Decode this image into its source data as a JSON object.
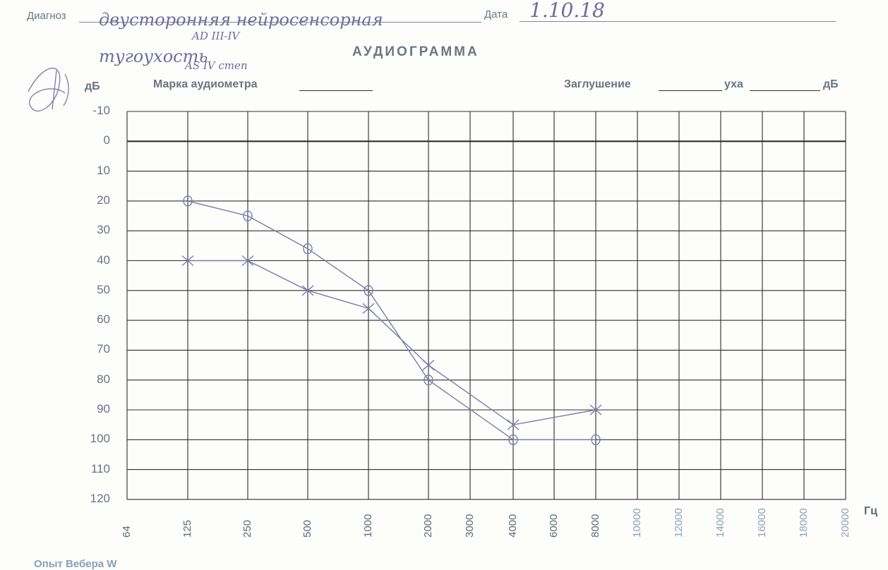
{
  "header": {
    "diagnosis_label": "Диагноз",
    "diagnosis_value": "двусторонняя нейросенсорная тугоухость",
    "date_label": "Дата",
    "date_value": "1.10.18",
    "margin_notes": [
      "AD III-IV",
      "AS IV степ"
    ]
  },
  "form": {
    "title": "АУДИОГРАММА",
    "audiometer_label": "Марка аудиометра",
    "masking_label": "Заглушение",
    "ear_label": "уха",
    "db_unit": "дБ"
  },
  "chart_data": {
    "type": "line",
    "title": "АУДИОГРАММА",
    "ylabel": "дБ",
    "xlabel": "Гц",
    "y_ticks": [
      "-10",
      "0",
      "10",
      "20",
      "30",
      "40",
      "50",
      "60",
      "70",
      "80",
      "90",
      "100",
      "110",
      "120"
    ],
    "ylim": [
      -10,
      120
    ],
    "y_inverted": true,
    "x_ticks": [
      "64",
      "125",
      "250",
      "500",
      "1000",
      "2000",
      "3000",
      "4000",
      "6000",
      "8000",
      "10000",
      "12000",
      "14000",
      "16000",
      "18000",
      "20000"
    ],
    "grid": true,
    "series": [
      {
        "marker": "circle",
        "color": "#7c7cae",
        "x": [
          "125",
          "250",
          "500",
          "1000",
          "2000",
          "4000",
          "8000"
        ],
        "values": [
          20,
          25,
          36,
          50,
          80,
          100,
          100
        ]
      },
      {
        "marker": "cross",
        "color": "#7c7cae",
        "x": [
          "125",
          "250",
          "500",
          "1000",
          "2000",
          "4000",
          "8000"
        ],
        "values": [
          40,
          40,
          50,
          56,
          75,
          95,
          90
        ]
      }
    ]
  },
  "footer": {
    "weber_label": "Опыт Вебера W"
  }
}
